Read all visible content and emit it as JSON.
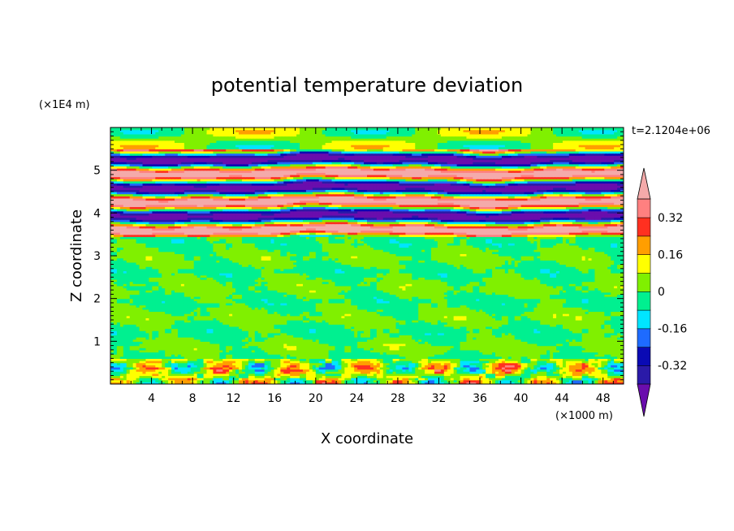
{
  "chart_data": {
    "type": "heatmap",
    "title": "potential temperature deviation",
    "time_label": "t=2.1204e+06",
    "xlabel": "X coordinate",
    "ylabel": "Z coordinate",
    "x_unit": "(×1000 m)",
    "y_unit": "(×1E4 m)",
    "xlim": [
      0,
      50
    ],
    "ylim": [
      0,
      6
    ],
    "x_ticks": [
      "4",
      "8",
      "12",
      "16",
      "20",
      "24",
      "28",
      "32",
      "36",
      "40",
      "44",
      "48"
    ],
    "y_ticks": [
      "1",
      "2",
      "3",
      "4",
      "5"
    ],
    "colorbar": {
      "ticks": [
        "0.32",
        "0.16",
        "0",
        "-0.16",
        "-0.32"
      ],
      "levels": [
        -0.4,
        -0.32,
        -0.24,
        -0.16,
        -0.08,
        0,
        0.08,
        0.16,
        0.24,
        0.32,
        0.4
      ],
      "colors": [
        "#6a0dad",
        "#2a1aa8",
        "#0a0ab4",
        "#1e6bff",
        "#00e5ff",
        "#00f090",
        "#80f000",
        "#ffff00",
        "#ff9e00",
        "#ff3020",
        "#ff8080",
        "#f4aaaa"
      ]
    },
    "bands": [
      {
        "z": [
          0.0,
          0.6
        ],
        "pattern": "noisy-low",
        "value_range": [
          -0.4,
          0.4
        ]
      },
      {
        "z": [
          0.6,
          3.45
        ],
        "pattern": "weak",
        "value_range": [
          -0.08,
          0.08
        ]
      },
      {
        "z": [
          3.45,
          5.5
        ],
        "pattern": "strong-layered",
        "value_range": [
          -0.4,
          0.4
        ]
      },
      {
        "z": [
          5.5,
          6.0
        ],
        "pattern": "moderate",
        "value_range": [
          -0.16,
          0.16
        ]
      }
    ]
  }
}
